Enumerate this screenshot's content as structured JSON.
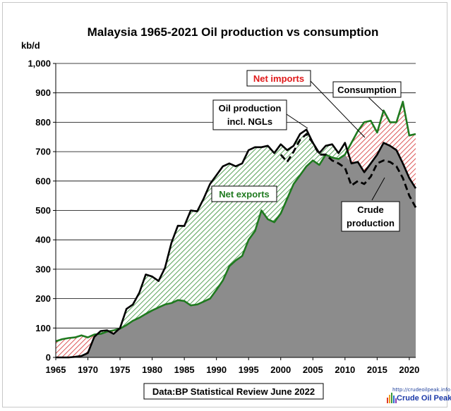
{
  "chart_data": {
    "type": "area",
    "title": "Malaysia  1965-2021 Oil production  vs consumption",
    "ylabel": "kb/d",
    "xlim": [
      1965,
      2021
    ],
    "ylim": [
      0,
      1000
    ],
    "yticks": [
      "0",
      "100",
      "200",
      "300",
      "400",
      "500",
      "600",
      "700",
      "800",
      "900",
      "1,000"
    ],
    "xticks": [
      1965,
      1970,
      1975,
      1980,
      1985,
      1990,
      1995,
      2000,
      2005,
      2010,
      2015,
      2020
    ],
    "grid": true,
    "series": [
      {
        "name": "Oil production incl. NGLs",
        "x": [
          1965,
          1966,
          1967,
          1968,
          1969,
          1970,
          1971,
          1972,
          1973,
          1974,
          1975,
          1976,
          1977,
          1978,
          1979,
          1980,
          1981,
          1982,
          1983,
          1984,
          1985,
          1986,
          1987,
          1988,
          1989,
          1990,
          1991,
          1992,
          1993,
          1994,
          1995,
          1996,
          1997,
          1998,
          1999,
          2000,
          2001,
          2002,
          2003,
          2004,
          2005,
          2006,
          2007,
          2008,
          2009,
          2010,
          2011,
          2012,
          2013,
          2014,
          2015,
          2016,
          2017,
          2018,
          2019,
          2020,
          2021
        ],
        "values": [
          0,
          0,
          0,
          2,
          5,
          15,
          70,
          90,
          92,
          80,
          100,
          165,
          180,
          220,
          282,
          275,
          260,
          305,
          390,
          448,
          447,
          500,
          497,
          540,
          590,
          620,
          650,
          660,
          650,
          660,
          705,
          715,
          715,
          720,
          695,
          725,
          705,
          720,
          760,
          775,
          730,
          695,
          720,
          725,
          695,
          730,
          660,
          665,
          630,
          660,
          690,
          730,
          720,
          705,
          660,
          610,
          575
        ],
        "color": "#000000"
      },
      {
        "name": "Consumption",
        "x": [
          1965,
          1966,
          1967,
          1968,
          1969,
          1970,
          1971,
          1972,
          1973,
          1974,
          1975,
          1976,
          1977,
          1978,
          1979,
          1980,
          1981,
          1982,
          1983,
          1984,
          1985,
          1986,
          1987,
          1988,
          1989,
          1990,
          1991,
          1992,
          1993,
          1994,
          1995,
          1996,
          1997,
          1998,
          1999,
          2000,
          2001,
          2002,
          2003,
          2004,
          2005,
          2006,
          2007,
          2008,
          2009,
          2010,
          2011,
          2012,
          2013,
          2014,
          2015,
          2016,
          2017,
          2018,
          2019,
          2020,
          2021
        ],
        "values": [
          55,
          62,
          66,
          68,
          75,
          68,
          78,
          80,
          88,
          92,
          98,
          110,
          125,
          135,
          148,
          160,
          170,
          180,
          185,
          195,
          192,
          177,
          180,
          190,
          200,
          230,
          262,
          310,
          330,
          345,
          400,
          430,
          500,
          470,
          460,
          490,
          540,
          590,
          620,
          650,
          670,
          655,
          690,
          680,
          675,
          690,
          730,
          770,
          800,
          805,
          765,
          840,
          800,
          800,
          870,
          755,
          760
        ],
        "color": "#1f7a1f"
      },
      {
        "name": "Crude production",
        "x": [
          2000,
          2001,
          2002,
          2003,
          2004,
          2005,
          2006,
          2007,
          2008,
          2009,
          2010,
          2011,
          2012,
          2013,
          2014,
          2015,
          2016,
          2017,
          2018,
          2019,
          2020,
          2021
        ],
        "values": [
          690,
          665,
          700,
          740,
          760,
          730,
          690,
          690,
          670,
          660,
          645,
          585,
          600,
          590,
          615,
          660,
          670,
          665,
          650,
          610,
          550,
          510
        ],
        "color": "#000000"
      }
    ],
    "annotations": [
      {
        "text": "Net imports",
        "color": "#e0191a"
      },
      {
        "text": "Consumption",
        "color": "#000000"
      },
      {
        "text": "Oil production",
        "color": "#000000"
      },
      {
        "text": "incl. NGLs",
        "color": "#000000"
      },
      {
        "text": "Net exports",
        "color": "#1f7a1f"
      },
      {
        "text": "Crude",
        "color": "#000000"
      },
      {
        "text": "production",
        "color": "#000000"
      }
    ],
    "source": "Data:BP Statistical Review June 2022"
  },
  "logo": {
    "url": "http://crudeoilpeak.info",
    "name": "Crude Oil Peak"
  },
  "colors": {
    "area": "#8c8c8c",
    "exports_hatch": "#2e8b2e",
    "imports_hatch": "#d42a2a"
  }
}
